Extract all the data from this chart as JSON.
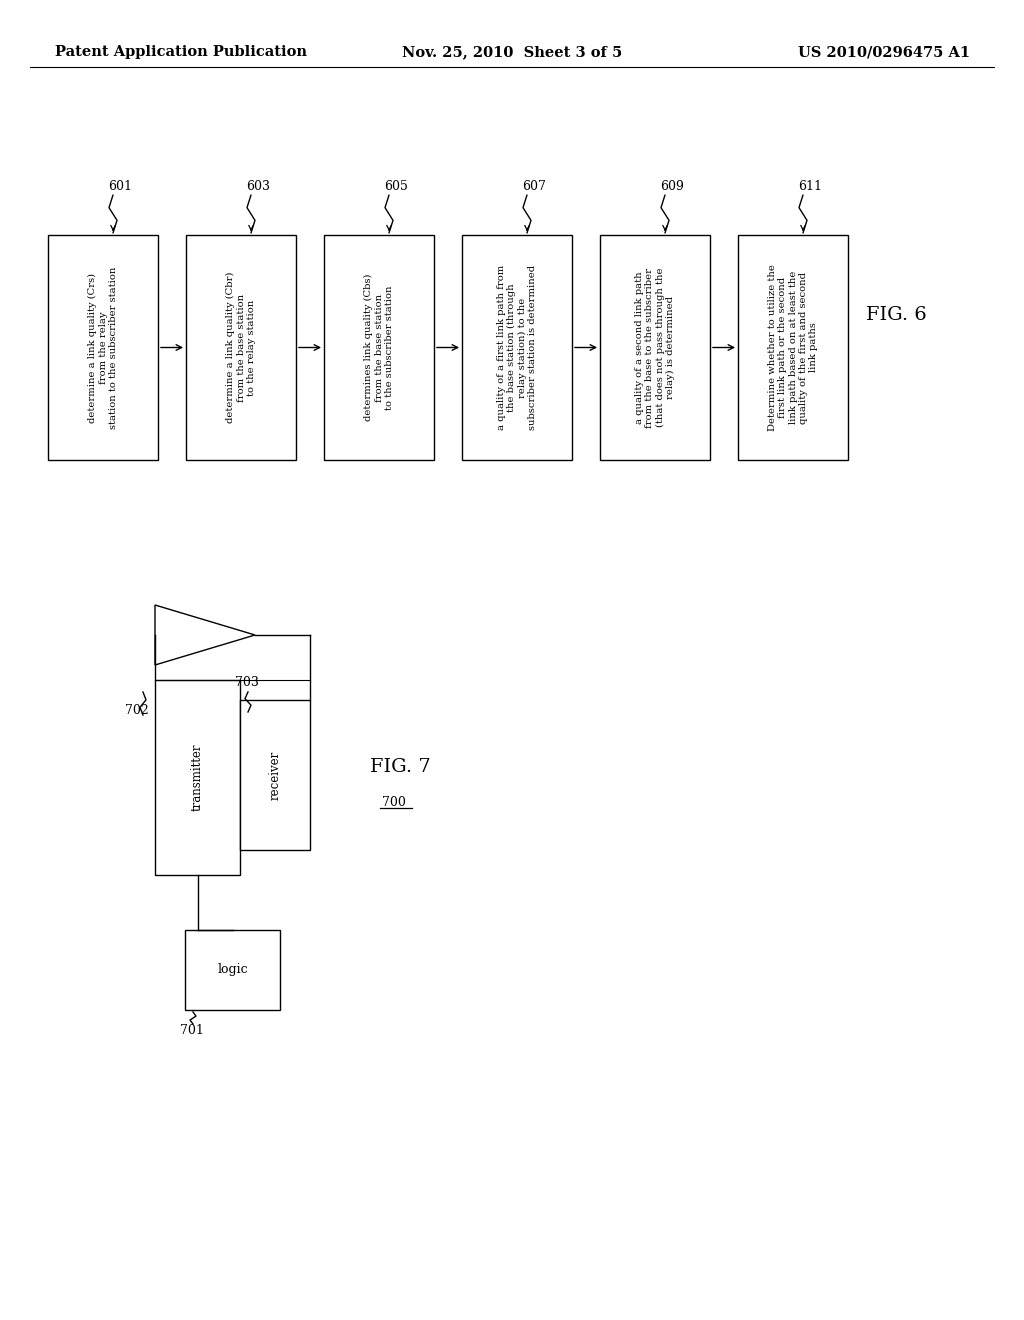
{
  "header_left": "Patent Application Publication",
  "header_mid": "Nov. 25, 2010  Sheet 3 of 5",
  "header_right": "US 2010/0296475 A1",
  "fig6_label": "FIG. 6",
  "fig7_label": "FIG. 7",
  "fig7_number": "700",
  "boxes": [
    {
      "id": "601",
      "label": "determine a link quality (Crs)\nfrom the relay\nstation to the subscriber station"
    },
    {
      "id": "603",
      "label": "determine a link quality (Cbr)\nfrom the base station\nto the relay station"
    },
    {
      "id": "605",
      "label": "determines link quality (Cbs)\nfrom the base station\nto the subscriber station"
    },
    {
      "id": "607",
      "label": "a quality of a first link path from\nthe base station (through\nrelay station) to the\nsubscriber station is determined"
    },
    {
      "id": "609",
      "label": "a quality of a second link path\nfrom the base to the subscriber\n(that does not pass through the\nrelay) is determined"
    },
    {
      "id": "611",
      "label": "Determine whether to utilize the\nfirst link path or the second\nlink path based on at least the\nquality of the first and second\nlink paths"
    }
  ],
  "bg_color": "#ffffff",
  "box_color": "#ffffff",
  "box_edge": "#000000",
  "arrow_color": "#000000",
  "text_color": "#000000",
  "font_size_header": 10.5,
  "font_size_box": 7.2,
  "font_size_label": 9,
  "font_size_fig": 14
}
